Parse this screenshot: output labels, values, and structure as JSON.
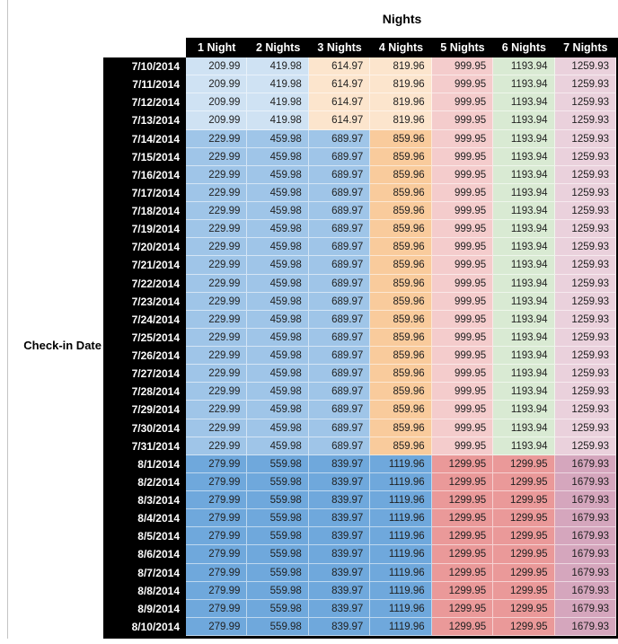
{
  "title": "Nights",
  "row_axis_label": "Check-in Date",
  "colors": {
    "header_bg": "#000000",
    "header_text": "#ffffff",
    "date_col_bg": "#000000",
    "date_col_text": "#ffffff",
    "cell_text": "#1f1f1f",
    "bands": {
      "early_july": [
        "#cfe2f3",
        "#cfe2f3",
        "#fce5cd",
        "#fce5cd",
        "#f4cccc",
        "#d9ead3",
        "#ead1dc"
      ],
      "mid_july": [
        "#9fc5e8",
        "#9fc5e8",
        "#9fc5e8",
        "#f9cb9c",
        "#f4cccc",
        "#d9ead3",
        "#ead1dc"
      ],
      "august": [
        "#6fa8dc",
        "#6fa8dc",
        "#6fa8dc",
        "#6fa8dc",
        "#ea9999",
        "#ea9999",
        "#d5a6bd"
      ]
    }
  },
  "chart_data": {
    "type": "table",
    "title": "Nights",
    "row_axis_label": "Check-in Date",
    "columns": [
      "1 Night",
      "2 Nights",
      "3 Nights",
      "4 Nights",
      "5 Nights",
      "6 Nights",
      "7 Nights"
    ],
    "rows": [
      {
        "date": "7/10/2014",
        "band": "early_july",
        "values": [
          209.99,
          419.98,
          614.97,
          819.96,
          999.95,
          1193.94,
          1259.93
        ]
      },
      {
        "date": "7/11/2014",
        "band": "early_july",
        "values": [
          209.99,
          419.98,
          614.97,
          819.96,
          999.95,
          1193.94,
          1259.93
        ]
      },
      {
        "date": "7/12/2014",
        "band": "early_july",
        "values": [
          209.99,
          419.98,
          614.97,
          819.96,
          999.95,
          1193.94,
          1259.93
        ]
      },
      {
        "date": "7/13/2014",
        "band": "early_july",
        "values": [
          209.99,
          419.98,
          614.97,
          819.96,
          999.95,
          1193.94,
          1259.93
        ]
      },
      {
        "date": "7/14/2014",
        "band": "mid_july",
        "values": [
          229.99,
          459.98,
          689.97,
          859.96,
          999.95,
          1193.94,
          1259.93
        ]
      },
      {
        "date": "7/15/2014",
        "band": "mid_july",
        "values": [
          229.99,
          459.98,
          689.97,
          859.96,
          999.95,
          1193.94,
          1259.93
        ]
      },
      {
        "date": "7/16/2014",
        "band": "mid_july",
        "values": [
          229.99,
          459.98,
          689.97,
          859.96,
          999.95,
          1193.94,
          1259.93
        ]
      },
      {
        "date": "7/17/2014",
        "band": "mid_july",
        "values": [
          229.99,
          459.98,
          689.97,
          859.96,
          999.95,
          1193.94,
          1259.93
        ]
      },
      {
        "date": "7/18/2014",
        "band": "mid_july",
        "values": [
          229.99,
          459.98,
          689.97,
          859.96,
          999.95,
          1193.94,
          1259.93
        ]
      },
      {
        "date": "7/19/2014",
        "band": "mid_july",
        "values": [
          229.99,
          459.98,
          689.97,
          859.96,
          999.95,
          1193.94,
          1259.93
        ]
      },
      {
        "date": "7/20/2014",
        "band": "mid_july",
        "values": [
          229.99,
          459.98,
          689.97,
          859.96,
          999.95,
          1193.94,
          1259.93
        ]
      },
      {
        "date": "7/21/2014",
        "band": "mid_july",
        "values": [
          229.99,
          459.98,
          689.97,
          859.96,
          999.95,
          1193.94,
          1259.93
        ]
      },
      {
        "date": "7/22/2014",
        "band": "mid_july",
        "values": [
          229.99,
          459.98,
          689.97,
          859.96,
          999.95,
          1193.94,
          1259.93
        ]
      },
      {
        "date": "7/23/2014",
        "band": "mid_july",
        "values": [
          229.99,
          459.98,
          689.97,
          859.96,
          999.95,
          1193.94,
          1259.93
        ]
      },
      {
        "date": "7/24/2014",
        "band": "mid_july",
        "values": [
          229.99,
          459.98,
          689.97,
          859.96,
          999.95,
          1193.94,
          1259.93
        ]
      },
      {
        "date": "7/25/2014",
        "band": "mid_july",
        "values": [
          229.99,
          459.98,
          689.97,
          859.96,
          999.95,
          1193.94,
          1259.93
        ]
      },
      {
        "date": "7/26/2014",
        "band": "mid_july",
        "values": [
          229.99,
          459.98,
          689.97,
          859.96,
          999.95,
          1193.94,
          1259.93
        ]
      },
      {
        "date": "7/27/2014",
        "band": "mid_july",
        "values": [
          229.99,
          459.98,
          689.97,
          859.96,
          999.95,
          1193.94,
          1259.93
        ]
      },
      {
        "date": "7/28/2014",
        "band": "mid_july",
        "values": [
          229.99,
          459.98,
          689.97,
          859.96,
          999.95,
          1193.94,
          1259.93
        ]
      },
      {
        "date": "7/29/2014",
        "band": "mid_july",
        "values": [
          229.99,
          459.98,
          689.97,
          859.96,
          999.95,
          1193.94,
          1259.93
        ]
      },
      {
        "date": "7/30/2014",
        "band": "mid_july",
        "values": [
          229.99,
          459.98,
          689.97,
          859.96,
          999.95,
          1193.94,
          1259.93
        ]
      },
      {
        "date": "7/31/2014",
        "band": "mid_july",
        "values": [
          229.99,
          459.98,
          689.97,
          859.96,
          999.95,
          1193.94,
          1259.93
        ]
      },
      {
        "date": "8/1/2014",
        "band": "august",
        "values": [
          279.99,
          559.98,
          839.97,
          1119.96,
          1299.95,
          1299.95,
          1679.93
        ]
      },
      {
        "date": "8/2/2014",
        "band": "august",
        "values": [
          279.99,
          559.98,
          839.97,
          1119.96,
          1299.95,
          1299.95,
          1679.93
        ]
      },
      {
        "date": "8/3/2014",
        "band": "august",
        "values": [
          279.99,
          559.98,
          839.97,
          1119.96,
          1299.95,
          1299.95,
          1679.93
        ]
      },
      {
        "date": "8/4/2014",
        "band": "august",
        "values": [
          279.99,
          559.98,
          839.97,
          1119.96,
          1299.95,
          1299.95,
          1679.93
        ]
      },
      {
        "date": "8/5/2014",
        "band": "august",
        "values": [
          279.99,
          559.98,
          839.97,
          1119.96,
          1299.95,
          1299.95,
          1679.93
        ]
      },
      {
        "date": "8/6/2014",
        "band": "august",
        "values": [
          279.99,
          559.98,
          839.97,
          1119.96,
          1299.95,
          1299.95,
          1679.93
        ]
      },
      {
        "date": "8/7/2014",
        "band": "august",
        "values": [
          279.99,
          559.98,
          839.97,
          1119.96,
          1299.95,
          1299.95,
          1679.93
        ]
      },
      {
        "date": "8/8/2014",
        "band": "august",
        "values": [
          279.99,
          559.98,
          839.97,
          1119.96,
          1299.95,
          1299.95,
          1679.93
        ]
      },
      {
        "date": "8/9/2014",
        "band": "august",
        "values": [
          279.99,
          559.98,
          839.97,
          1119.96,
          1299.95,
          1299.95,
          1679.93
        ]
      },
      {
        "date": "8/10/2014",
        "band": "august",
        "values": [
          279.99,
          559.98,
          839.97,
          1119.96,
          1299.95,
          1299.95,
          1679.93
        ]
      }
    ]
  }
}
